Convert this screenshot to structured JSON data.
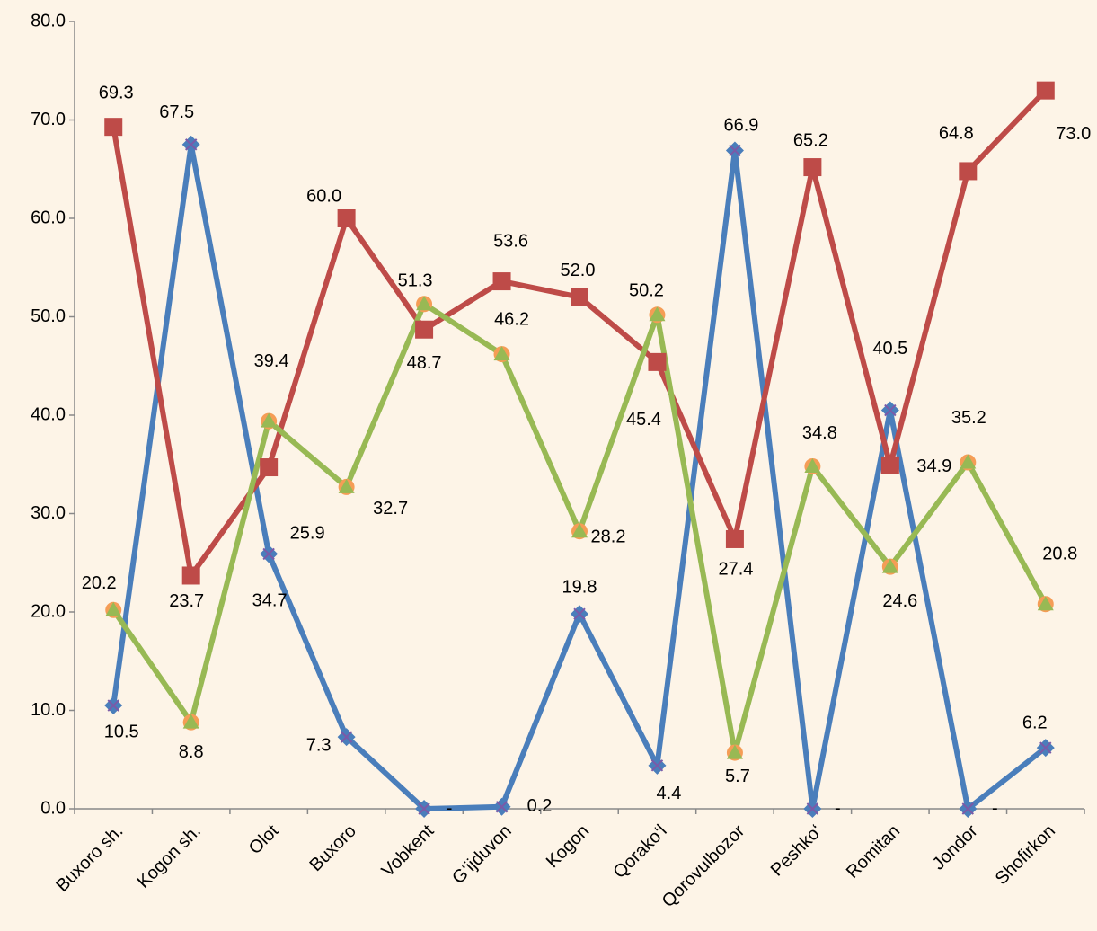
{
  "chart_data": {
    "type": "line",
    "categories": [
      "Buxoro sh.",
      "Kogon sh.",
      "Olot",
      "Buxoro",
      "Vobkent",
      "G‘ijduvon",
      "Kogon",
      "Qorako‘l",
      "Qorovulbozor",
      "Peshko‘",
      "Romitan",
      "Jondor",
      "Shofirkon"
    ],
    "series": [
      {
        "color": "#4a7ebb",
        "marker": "x",
        "marker_color": "#4a7ebb",
        "values": [
          10.5,
          67.5,
          25.9,
          7.3,
          0,
          0.2,
          19.8,
          4.4,
          66.9,
          0,
          40.5,
          0,
          6.2
        ],
        "value_labels": [
          "10.5",
          "67.5",
          "25.9",
          "7.3",
          "-",
          "0.2",
          "19.8",
          "4.4",
          "66.9",
          "-",
          "40.5",
          "-",
          "6.2"
        ]
      },
      {
        "color": "#be4b48",
        "marker": "square",
        "marker_color": "#be4b48",
        "values": [
          69.3,
          23.7,
          34.7,
          60.0,
          48.7,
          53.6,
          52.0,
          45.4,
          27.4,
          65.2,
          34.9,
          64.8,
          73.0
        ],
        "value_labels": [
          "69.3",
          "23.7",
          "34.7",
          "60.0",
          "48.7",
          "53.6",
          "52.0",
          "45.4",
          "27.4",
          "65.2",
          "34.9",
          "64.8",
          "73.0"
        ]
      },
      {
        "color": "#98b954",
        "marker": "circle",
        "marker_color": "#f59d56",
        "values": [
          20.2,
          8.8,
          39.4,
          32.7,
          51.3,
          46.2,
          28.2,
          50.2,
          5.7,
          34.8,
          24.6,
          35.2,
          20.8
        ],
        "value_labels": [
          "20.2",
          "8.8",
          "39.4",
          "32.7",
          "51.3",
          "46.2",
          "28.2",
          "50.2",
          "5.7",
          "34.8",
          "24.6",
          "35.2",
          "20.8"
        ]
      }
    ],
    "ylim": [
      0,
      80
    ],
    "yticks": [
      {
        "value": 0,
        "label": "0.0"
      },
      {
        "value": 10,
        "label": "10.0"
      },
      {
        "value": 20,
        "label": "20.0"
      },
      {
        "value": 30,
        "label": "30.0"
      },
      {
        "value": 40,
        "label": "40.0"
      },
      {
        "value": 50,
        "label": "50.0"
      },
      {
        "value": 60,
        "label": "60.0"
      },
      {
        "value": 70,
        "label": "70.0"
      },
      {
        "value": 80,
        "label": "80.0"
      }
    ],
    "grid": false
  }
}
